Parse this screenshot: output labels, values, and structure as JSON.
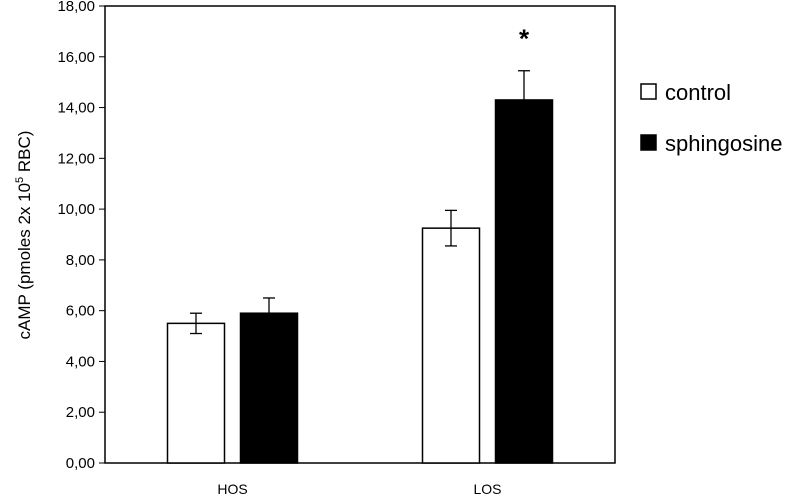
{
  "chart_data": {
    "type": "bar",
    "categories": [
      "HOS",
      "LOS"
    ],
    "series": [
      {
        "name": "control",
        "values": [
          5.5,
          9.25
        ],
        "errors": [
          0.4,
          0.7
        ],
        "color": "#ffffff"
      },
      {
        "name": "sphingosine",
        "values": [
          5.9,
          14.3
        ],
        "errors": [
          0.6,
          1.15
        ],
        "color": "#000000"
      }
    ],
    "ylim": [
      0,
      18
    ],
    "yticks": [
      "0,00",
      "2,00",
      "4,00",
      "6,00",
      "8,00",
      "10,00",
      "12,00",
      "14,00",
      "16,00",
      "18,00"
    ],
    "ytick_values": [
      0,
      2,
      4,
      6,
      8,
      10,
      12,
      14,
      16,
      18
    ],
    "ylabel": {
      "main": "cAMP (pmoles 2x 10",
      "sup": "5",
      "tail": " RBC)"
    },
    "xlabel": "",
    "title": "",
    "grid": false,
    "legend_position": "right",
    "annotations": [
      {
        "text": "*",
        "category": "LOS",
        "series": "sphingosine"
      }
    ]
  }
}
